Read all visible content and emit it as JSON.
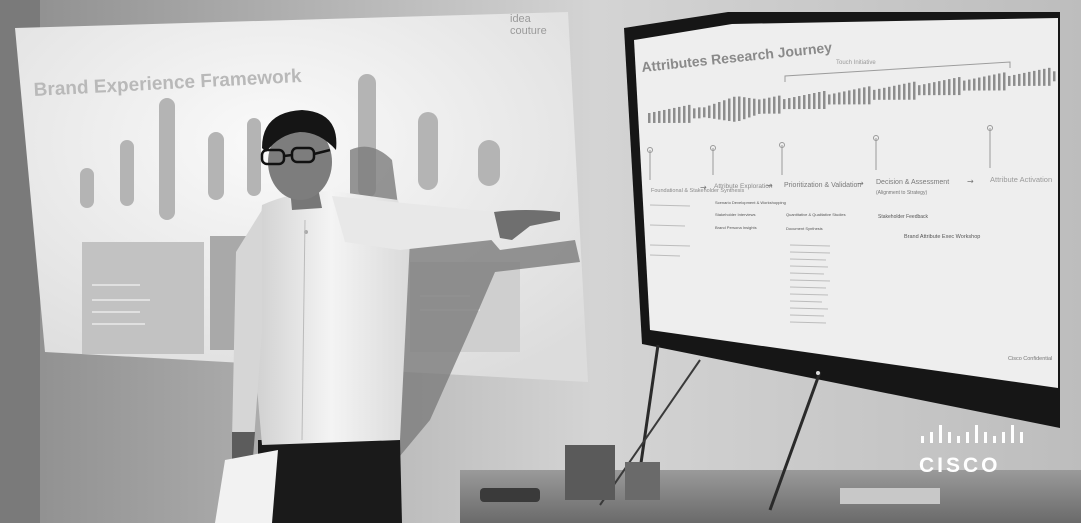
{
  "projector_slide": {
    "title": "Brand Experience Framework",
    "logo_line1": "idea",
    "logo_line2": "couture"
  },
  "tv_slide": {
    "title": "Attributes Research Journey",
    "bracket_label": "Touch Initiative",
    "stages": [
      "Foundational & Stakeholder Synthesis",
      "Attribute Exploration",
      "Prioritization & Validation",
      "Decision & Assessment",
      "Attribute Activation"
    ],
    "decision_sub": "(Alignment to Strategy)",
    "column_items": {
      "exploration": [
        "Scenario Development & Workshopping",
        "Stakeholder Interviews",
        "Brand Persona Insights"
      ],
      "validation": [
        "Quantitative & Qualitative Studies",
        "Document Synthesis"
      ],
      "decision": [
        "Stakeholder Feedback",
        "Brand Attribute Exec Workshop"
      ]
    },
    "footer": "Cisco Confidential"
  },
  "brand": {
    "name": "CISCO"
  }
}
